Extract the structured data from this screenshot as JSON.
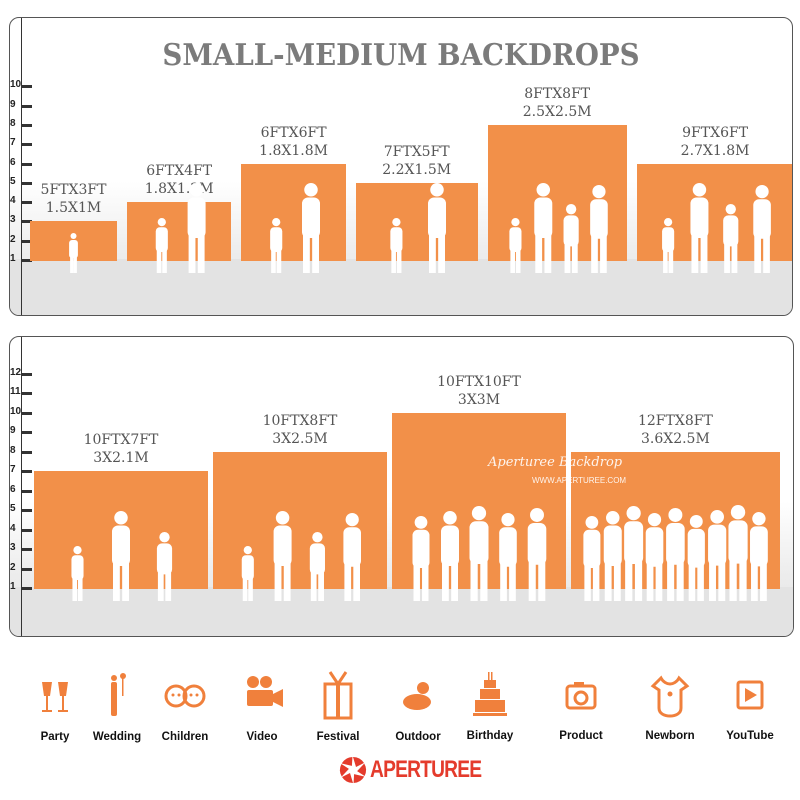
{
  "title": "SMALL-MEDIUM BACKDROPS",
  "colors": {
    "bar": "#f29049",
    "icon": "#f0803c",
    "logo": "#e43b2c",
    "title": "#7b7b7b"
  },
  "panel_top": {
    "scale_ticks": [
      "1",
      "2",
      "3",
      "4",
      "5",
      "6",
      "7",
      "8",
      "9",
      "10"
    ],
    "backdrops": [
      {
        "size_ft": "5FTX3FT",
        "size_m": "1.5X1M",
        "width_ft": 5,
        "height_ft": 3,
        "figures": 1
      },
      {
        "size_ft": "6FTX4FT",
        "size_m": "1.8X1.2M",
        "width_ft": 6,
        "height_ft": 4,
        "figures": 2
      },
      {
        "size_ft": "6FTX6FT",
        "size_m": "1.8X1.8M",
        "width_ft": 6,
        "height_ft": 6,
        "figures": 2
      },
      {
        "size_ft": "7FTX5FT",
        "size_m": "2.2X1.5M",
        "width_ft": 7,
        "height_ft": 5,
        "figures": 2
      },
      {
        "size_ft": "8FTX8FT",
        "size_m": "2.5X2.5M",
        "width_ft": 8,
        "height_ft": 8,
        "figures": 4
      },
      {
        "size_ft": "9FTX6FT",
        "size_m": "2.7X1.8M",
        "width_ft": 9,
        "height_ft": 6,
        "figures": 4
      }
    ]
  },
  "panel_bottom": {
    "scale_ticks": [
      "1",
      "2",
      "3",
      "4",
      "5",
      "6",
      "7",
      "8",
      "9",
      "10",
      "11",
      "12"
    ],
    "backdrops": [
      {
        "size_ft": "10FTX7FT",
        "size_m": "3X2.1M",
        "width_ft": 10,
        "height_ft": 7,
        "figures": 3
      },
      {
        "size_ft": "10FTX8FT",
        "size_m": "3X2.5M",
        "width_ft": 10,
        "height_ft": 8,
        "figures": 4
      },
      {
        "size_ft": "10FTX10FT",
        "size_m": "3X3M",
        "width_ft": 10,
        "height_ft": 10,
        "figures": 5
      },
      {
        "size_ft": "12FTX8FT",
        "size_m": "3.6X2.5M",
        "width_ft": 12,
        "height_ft": 8,
        "figures": 9
      }
    ],
    "watermark": {
      "script": "Aperturee Backdrop",
      "url": "WWW.APERTUREE.COM"
    }
  },
  "uses": [
    {
      "label": "Party",
      "icon": "champagne-glasses-icon"
    },
    {
      "label": "Wedding",
      "icon": "wedding-couple-icon"
    },
    {
      "label": "Children",
      "icon": "children-faces-icon"
    },
    {
      "label": "Video",
      "icon": "film-camera-icon"
    },
    {
      "label": "Festival",
      "icon": "gift-box-icon"
    },
    {
      "label": "Outdoor",
      "icon": "sun-cloud-icon"
    },
    {
      "label": "Birthday",
      "icon": "birthday-cake-icon"
    },
    {
      "label": "Product",
      "icon": "camera-icon"
    },
    {
      "label": "Newborn",
      "icon": "baby-onesie-icon"
    },
    {
      "label": "YouTube",
      "icon": "play-button-icon"
    }
  ],
  "brand": "APERTUREE"
}
